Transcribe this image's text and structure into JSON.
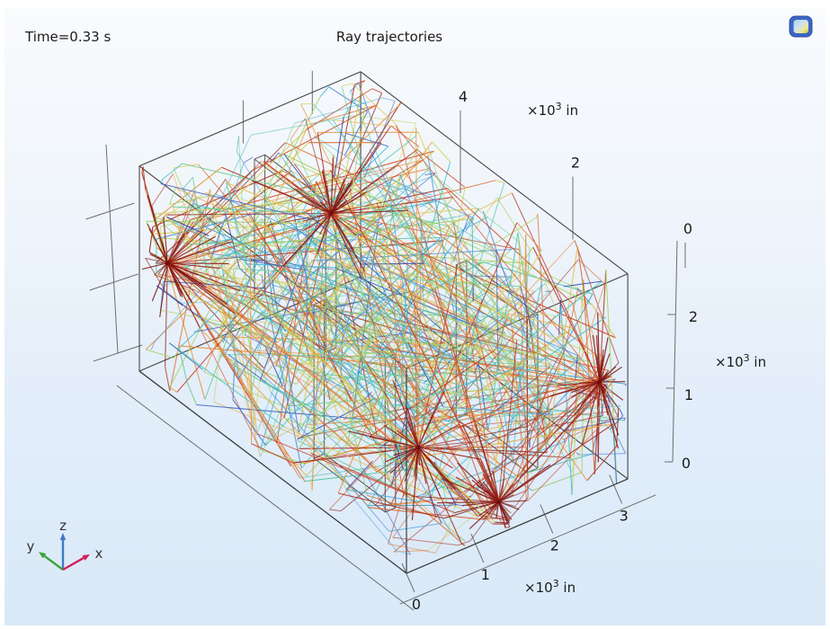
{
  "header": {
    "time_label": "Time=0.33 s",
    "title": "Ray trajectories"
  },
  "branding": {
    "logo_name": "comsol-logo",
    "logo_blue": "#3b67c6"
  },
  "chart_data": {
    "type": "line",
    "plot_kind": "3d-ray-trajectories",
    "title": "Ray trajectories",
    "time_annotation": "Time=0.33 s",
    "axes": {
      "x": {
        "ticks": [
          0,
          1,
          2,
          3
        ],
        "unit": "×10³ in",
        "range": [
          0,
          3.2
        ]
      },
      "y": {
        "ticks": [
          4,
          2,
          0
        ],
        "unit": "×10³ in",
        "range": [
          0,
          4.5
        ]
      },
      "z": {
        "ticks": [
          2,
          1,
          0
        ],
        "unit": "×10³ in",
        "range": [
          0,
          2.8
        ]
      }
    },
    "unit_parts": {
      "prefix": "×10",
      "exponent": "3",
      "suffix": " in"
    },
    "room": {
      "size": [
        3.2,
        4.5,
        2.8
      ],
      "interior_walls": [
        {
          "x": [
            1.15,
            1.3
          ],
          "y": [
            2.7,
            3.9
          ],
          "z": [
            0.9,
            2.8
          ]
        },
        {
          "x": [
            0.55,
            0.7
          ],
          "y": [
            1.0,
            2.2
          ],
          "z": [
            0.0,
            2.1
          ]
        },
        {
          "x": [
            2.35,
            2.5
          ],
          "y": [
            0.7,
            1.9
          ],
          "z": [
            0.0,
            2.1
          ]
        }
      ]
    },
    "sources": [
      {
        "position": [
          0.15,
          4.2,
          1.6
        ]
      },
      {
        "position": [
          2.0,
          3.6,
          1.9
        ]
      },
      {
        "position": [
          3.05,
          0.3,
          1.2
        ]
      },
      {
        "position": [
          1.2,
          1.2,
          0.5
        ]
      },
      {
        "position": [
          1.55,
          0.25,
          0.2
        ]
      }
    ],
    "ray_style": {
      "rays_per_source": 34,
      "sparks_per_source": 26,
      "max_bounces": 9,
      "seed": 12345,
      "source_burst_color": "#6d0f11",
      "colormap": {
        "positions": [
          0,
          0.09,
          0.18,
          0.27,
          0.36,
          0.45,
          0.54,
          0.63,
          0.72,
          0.8,
          0.89,
          1
        ],
        "colors": [
          "#6f0d10",
          "#a02016",
          "#cc3d1e",
          "#e06a28",
          "#eb9a3a",
          "#e8c84f",
          "#c2d455",
          "#8ed06e",
          "#55c9a8",
          "#3fbdd4",
          "#4b86d8",
          "#2f3fa8"
        ]
      }
    },
    "background_gradient": [
      "#f9fbfd",
      "#d9e9f8"
    ]
  },
  "triad": {
    "x": {
      "label": "x",
      "color": "#d2205f"
    },
    "y": {
      "label": "y",
      "color": "#3aa43a"
    },
    "z": {
      "label": "z",
      "color": "#3e7cc3"
    }
  }
}
